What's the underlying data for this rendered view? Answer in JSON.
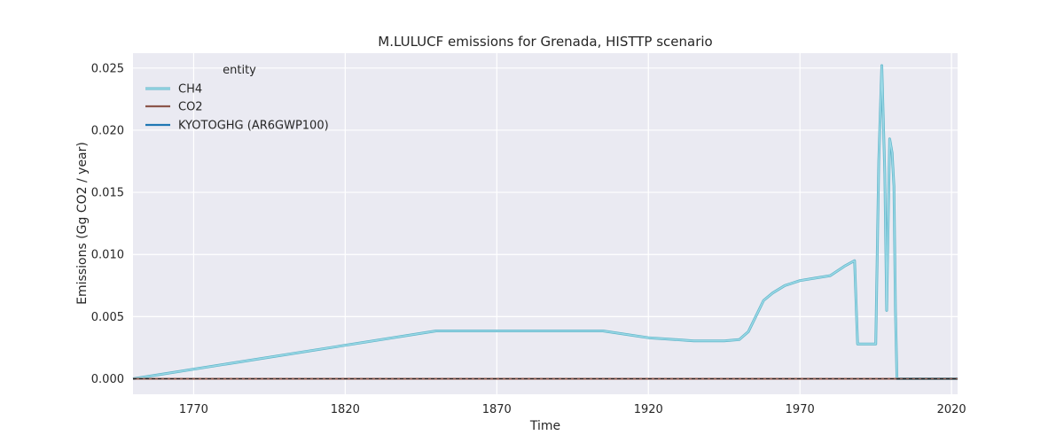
{
  "chart_data": {
    "type": "line",
    "title": "M.LULUCF emissions for Grenada, HISTTP scenario",
    "xlabel": "Time",
    "ylabel": "Emissions (Gg CO2 / year)",
    "xlim": [
      1750,
      2022
    ],
    "ylim": [
      -0.00125,
      0.0262
    ],
    "xticks": [
      1770,
      1820,
      1870,
      1920,
      1970,
      2020
    ],
    "yticks": [
      "0.000",
      "0.005",
      "0.010",
      "0.015",
      "0.020",
      "0.025"
    ],
    "grid": true,
    "legend": {
      "title": "entity",
      "position": "top-left"
    },
    "colors": {
      "CH4": "#9ad9e6",
      "CH4_edge": "#5fb3c8",
      "CO2": "#8c564b",
      "KYOTOGHG": "#1f77b4",
      "background": "#eaeaf2"
    },
    "series": [
      {
        "name": "CH4",
        "points": [
          [
            1750,
            0.0
          ],
          [
            1850,
            0.00385
          ],
          [
            1905,
            0.00385
          ],
          [
            1920,
            0.0033
          ],
          [
            1935,
            0.00305
          ],
          [
            1945,
            0.00305
          ],
          [
            1950,
            0.00315
          ],
          [
            1953,
            0.0038
          ],
          [
            1958,
            0.0063
          ],
          [
            1961,
            0.0069
          ],
          [
            1965,
            0.0075
          ],
          [
            1970,
            0.0079
          ],
          [
            1975,
            0.0081
          ],
          [
            1980,
            0.0083
          ],
          [
            1985,
            0.0091
          ],
          [
            1988,
            0.0095
          ],
          [
            1989,
            0.0028
          ],
          [
            1995,
            0.0028
          ],
          [
            1996,
            0.0175
          ],
          [
            1997,
            0.0252
          ],
          [
            1998,
            0.0165
          ],
          [
            1998.6,
            0.0055
          ],
          [
            1999,
            0.0115
          ],
          [
            1999.6,
            0.0193
          ],
          [
            2000.4,
            0.0182
          ],
          [
            2001,
            0.0155
          ],
          [
            2001.5,
            0.0055
          ],
          [
            2002,
            0.0
          ],
          [
            2022,
            0.0
          ]
        ]
      },
      {
        "name": "CO2",
        "points": [
          [
            1750,
            0.0
          ],
          [
            2022,
            0.0
          ]
        ]
      },
      {
        "name": "KYOTOGHG (AR6GWP100)",
        "points": [
          [
            1750,
            0.0
          ],
          [
            2022,
            0.0
          ]
        ]
      }
    ]
  }
}
